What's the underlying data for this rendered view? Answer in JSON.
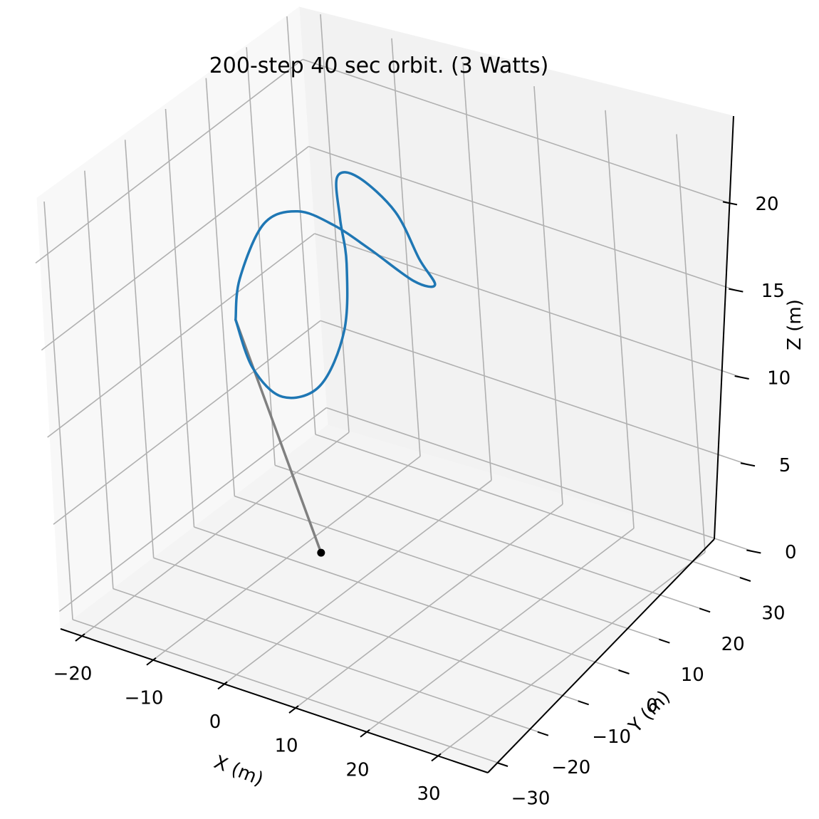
{
  "chart_data": {
    "type": "line",
    "title": "200-step 40 sec orbit. (3 Watts)",
    "xlabel": "X (m)",
    "ylabel": "Y (m)",
    "zlabel": "Z (m)",
    "x_ticks": [
      -20,
      -10,
      0,
      10,
      20,
      30
    ],
    "y_ticks": [
      -30,
      -20,
      -10,
      0,
      10,
      20,
      30
    ],
    "z_ticks": [
      0,
      5,
      10,
      15,
      20
    ],
    "x_tick_labels": [
      "−20",
      "−10",
      "0",
      "10",
      "20",
      "30"
    ],
    "y_tick_labels": [
      "−30",
      "−20",
      "−10",
      "0",
      "10",
      "20",
      "30"
    ],
    "z_tick_labels": [
      "0",
      "5",
      "10",
      "15",
      "20"
    ],
    "xlim": [
      -23,
      37
    ],
    "ylim": [
      -33,
      33
    ],
    "zlim": [
      -1,
      23
    ],
    "grid": true,
    "series": [
      {
        "color": "#1f77b4",
        "note": "figure-eight orbit",
        "points": [
          [
            -15.0,
            0.0,
            12.0
          ],
          [
            -13.0,
            0.0,
            9.5
          ],
          [
            -9.0,
            0.0,
            8.4
          ],
          [
            -3.5,
            0.0,
            9.8
          ],
          [
            0.5,
            0.0,
            13.5
          ],
          [
            1.5,
            0.0,
            17.5
          ],
          [
            1.0,
            0.0,
            20.0
          ],
          [
            1.0,
            0.0,
            22.4
          ],
          [
            4.0,
            0.0,
            22.8
          ],
          [
            9.0,
            0.0,
            21.5
          ],
          [
            12.0,
            0.0,
            19.2
          ],
          [
            14.0,
            0.0,
            18.0
          ],
          [
            11.0,
            0.0,
            17.8
          ],
          [
            5.0,
            0.0,
            18.8
          ],
          [
            0.0,
            0.0,
            19.5
          ],
          [
            -5.0,
            0.0,
            19.6
          ],
          [
            -10.0,
            0.0,
            18.2
          ],
          [
            -14.0,
            0.0,
            14.5
          ],
          [
            -15.0,
            0.0,
            12.0
          ]
        ]
      },
      {
        "color": "#808080",
        "note": "tether",
        "points": [
          [
            -15.0,
            0.0,
            12.0
          ],
          [
            -5.0,
            0.0,
            0.0
          ]
        ]
      }
    ],
    "markers": [
      {
        "point": [
          -5.0,
          0.0,
          0.0
        ],
        "color": "#000000"
      }
    ]
  }
}
